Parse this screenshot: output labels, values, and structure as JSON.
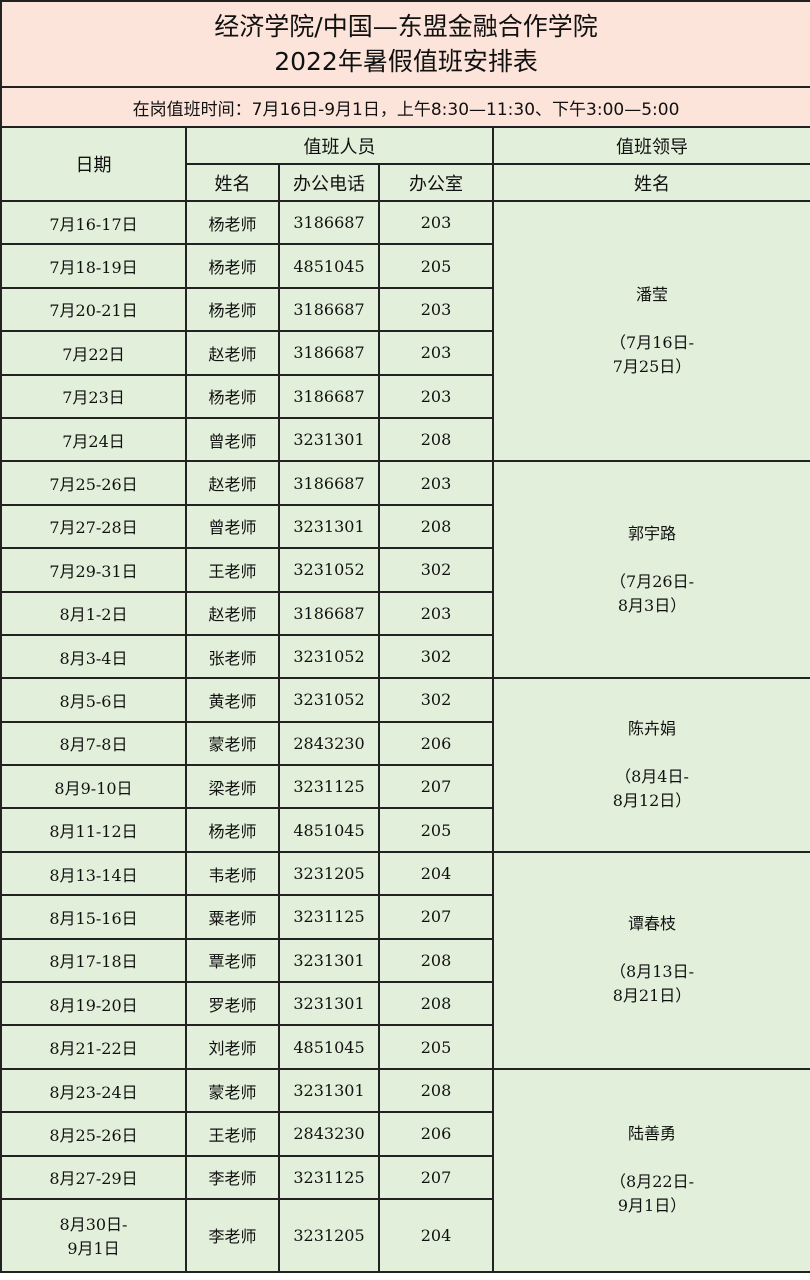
{
  "title_line1": "经济学院/中国—东盟金融合作学院",
  "title_line2": "2022年暑假值班安排表",
  "duty_time": "在岗值班时间：7月16日-9月1日，上午8:30—11:30、下午3:00—5:00",
  "headers": {
    "date": "日期",
    "staff": "值班人员",
    "leader": "值班领导",
    "name": "姓名",
    "phone": "办公电话",
    "office": "办公室",
    "leader_name": "姓名"
  },
  "colors": {
    "title_bg": "#fde4da",
    "table_bg": "#e2efda"
  },
  "rows": [
    {
      "date": "7月16-17日",
      "name": "杨老师",
      "phone": "3186687",
      "office": "203"
    },
    {
      "date": "7月18-19日",
      "name": "杨老师",
      "phone": "4851045",
      "office": "205"
    },
    {
      "date": "7月20-21日",
      "name": "杨老师",
      "phone": "3186687",
      "office": "203"
    },
    {
      "date": "7月22日",
      "name": "赵老师",
      "phone": "3186687",
      "office": "203"
    },
    {
      "date": "7月23日",
      "name": "杨老师",
      "phone": "3186687",
      "office": "203"
    },
    {
      "date": "7月24日",
      "name": "曾老师",
      "phone": "3231301",
      "office": "208"
    },
    {
      "date": "7月25-26日",
      "name": "赵老师",
      "phone": "3186687",
      "office": "203"
    },
    {
      "date": "7月27-28日",
      "name": "曾老师",
      "phone": "3231301",
      "office": "208"
    },
    {
      "date": "7月29-31日",
      "name": "王老师",
      "phone": "3231052",
      "office": "302"
    },
    {
      "date": "8月1-2日",
      "name": "赵老师",
      "phone": "3186687",
      "office": "203"
    },
    {
      "date": "8月3-4日",
      "name": "张老师",
      "phone": "3231052",
      "office": "302"
    },
    {
      "date": "8月5-6日",
      "name": "黄老师",
      "phone": "3231052",
      "office": "302"
    },
    {
      "date": "8月7-8日",
      "name": "蒙老师",
      "phone": "2843230",
      "office": "206"
    },
    {
      "date": "8月9-10日",
      "name": "梁老师",
      "phone": "3231125",
      "office": "207"
    },
    {
      "date": "8月11-12日",
      "name": "杨老师",
      "phone": "4851045",
      "office": "205"
    },
    {
      "date": "8月13-14日",
      "name": "韦老师",
      "phone": "3231205",
      "office": "204"
    },
    {
      "date": "8月15-16日",
      "name": "粟老师",
      "phone": "3231125",
      "office": "207"
    },
    {
      "date": "8月17-18日",
      "name": "覃老师",
      "phone": "3231301",
      "office": "208"
    },
    {
      "date": "8月19-20日",
      "name": "罗老师",
      "phone": "3231301",
      "office": "208"
    },
    {
      "date": "8月21-22日",
      "name": "刘老师",
      "phone": "4851045",
      "office": "205"
    },
    {
      "date": "8月23-24日",
      "name": "蒙老师",
      "phone": "3231301",
      "office": "208"
    },
    {
      "date": "8月25-26日",
      "name": "王老师",
      "phone": "2843230",
      "office": "206"
    },
    {
      "date": "8月27-29日",
      "name": "李老师",
      "phone": "3231125",
      "office": "207"
    },
    {
      "date": "8月30日-\n9月1日",
      "name": "李老师",
      "phone": "3231205",
      "office": "204"
    }
  ],
  "leaders": [
    {
      "name": "潘莹",
      "range_line1": "（7月16日-",
      "range_line2": "7月25日）",
      "rows": 6
    },
    {
      "name": "郭宇路",
      "range_line1": "（7月26日-",
      "range_line2": "8月3日）",
      "rows": 5
    },
    {
      "name": "陈卉娟",
      "range_line1": "（8月4日-",
      "range_line2": "8月12日）",
      "rows": 4
    },
    {
      "name": "谭春枝",
      "range_line1": "（8月13日-",
      "range_line2": "8月21日）",
      "rows": 5
    },
    {
      "name": "陆善勇",
      "range_line1": "（8月22日-",
      "range_line2": "9月1日）",
      "rows": 4
    }
  ]
}
